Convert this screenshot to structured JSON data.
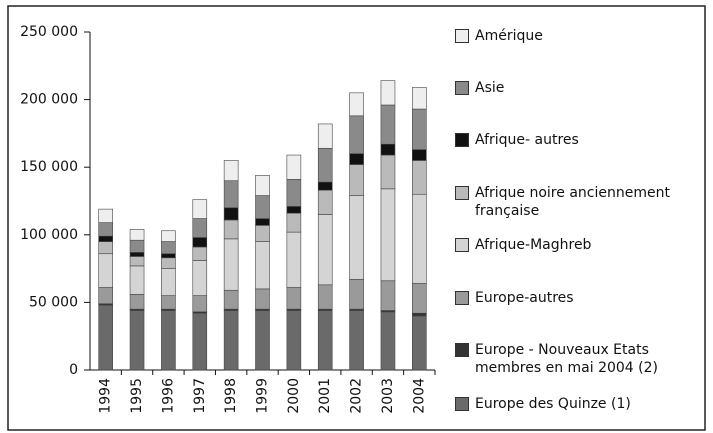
{
  "chart_data": {
    "type": "bar",
    "stacked": true,
    "categories": [
      "1994",
      "1995",
      "1996",
      "1997",
      "1998",
      "1999",
      "2000",
      "2001",
      "2002",
      "2003",
      "2004"
    ],
    "series": [
      {
        "name": "Europe des Quinze  (1)",
        "color": "#6a6a6a",
        "values": [
          48000,
          44000,
          44000,
          42000,
          44000,
          44000,
          44000,
          44000,
          44000,
          43000,
          40000
        ]
      },
      {
        "name": "Europe - Nouveaux Etats membres en mai 2004 (2)",
        "color": "#333333",
        "values": [
          1000,
          1000,
          1000,
          1000,
          1000,
          1000,
          1000,
          1000,
          1000,
          1000,
          2000
        ]
      },
      {
        "name": "Europe-autres",
        "color": "#9a9a9a",
        "values": [
          12000,
          11000,
          10000,
          12000,
          14000,
          15000,
          16000,
          18000,
          22000,
          22000,
          22000
        ]
      },
      {
        "name": "Afrique-Maghreb",
        "color": "#d4d4d4",
        "values": [
          25000,
          21000,
          20000,
          26000,
          38000,
          35000,
          41000,
          52000,
          62000,
          68000,
          66000
        ]
      },
      {
        "name": "Afrique noire anciennement française",
        "color": "#bababa",
        "values": [
          9000,
          7000,
          8000,
          10000,
          14000,
          12000,
          14000,
          18000,
          23000,
          25000,
          25000
        ]
      },
      {
        "name": "Afrique- autres",
        "color": "#111111",
        "values": [
          4000,
          3000,
          3000,
          7000,
          9000,
          5000,
          5000,
          6000,
          8000,
          8000,
          8000
        ]
      },
      {
        "name": "Asie",
        "color": "#8a8a8a",
        "values": [
          10000,
          9000,
          9000,
          14000,
          20000,
          17000,
          20000,
          25000,
          28000,
          29000,
          30000
        ]
      },
      {
        "name": "Amérique",
        "color": "#eeeeee",
        "values": [
          10000,
          8000,
          8000,
          14000,
          15000,
          15000,
          18000,
          18000,
          17000,
          18000,
          16000
        ]
      }
    ],
    "ylim": [
      0,
      250000
    ],
    "yticks": [
      {
        "value": 0,
        "label": "0"
      },
      {
        "value": 50000,
        "label": "50 000"
      },
      {
        "value": 100000,
        "label": "100 000"
      },
      {
        "value": 150000,
        "label": "150 000"
      },
      {
        "value": 200000,
        "label": "200 000"
      },
      {
        "value": 250000,
        "label": "250 000"
      }
    ]
  }
}
